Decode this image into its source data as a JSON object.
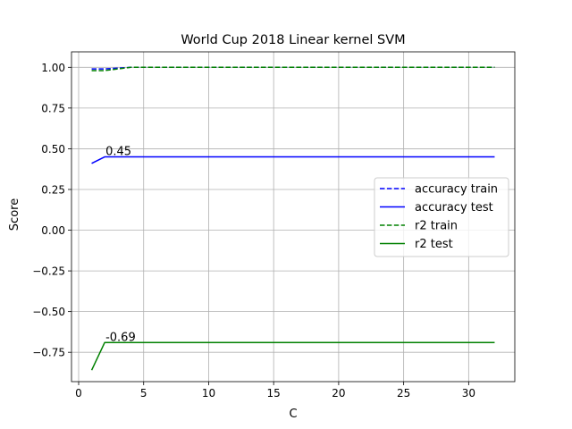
{
  "chart_data": {
    "type": "line",
    "title": "World Cup 2018 Linear kernel SVM",
    "xlabel": "C",
    "ylabel": "Score",
    "xlim": [
      -0.55,
      33.55
    ],
    "ylim": [
      -0.93,
      1.095
    ],
    "xticks": [
      0,
      5,
      10,
      15,
      20,
      25,
      30
    ],
    "xtick_labels": [
      "0",
      "5",
      "10",
      "15",
      "20",
      "25",
      "30"
    ],
    "yticks": [
      1.0,
      0.75,
      0.5,
      0.25,
      0.0,
      -0.25,
      -0.5,
      -0.75
    ],
    "ytick_labels": [
      "1.00",
      "0.75",
      "0.50",
      "0.25",
      "0.00",
      "−0.25",
      "−0.50",
      "−0.75"
    ],
    "grid": true,
    "legend_position": "center-right",
    "x": [
      1,
      2,
      4,
      8,
      16,
      32
    ],
    "series": [
      {
        "name": "accuracy train",
        "color": "#0000ff",
        "dash": "dashed",
        "values": [
          0.99,
          0.99,
          1.0,
          1.0,
          1.0,
          1.0
        ]
      },
      {
        "name": "accuracy test",
        "color": "#0000ff",
        "dash": "solid",
        "values": [
          0.41,
          0.45,
          0.45,
          0.45,
          0.45,
          0.45
        ]
      },
      {
        "name": "r2 train",
        "color": "#008000",
        "dash": "dashed",
        "values": [
          0.98,
          0.98,
          1.0,
          1.0,
          1.0,
          1.0
        ]
      },
      {
        "name": "r2 test",
        "color": "#008000",
        "dash": "solid",
        "values": [
          -0.86,
          -0.69,
          -0.69,
          -0.69,
          -0.69,
          -0.69
        ]
      }
    ],
    "annotations": [
      {
        "text": "0.45",
        "x": 2,
        "y": 0.45
      },
      {
        "text": "-0.69",
        "x": 2,
        "y": -0.69
      }
    ]
  }
}
